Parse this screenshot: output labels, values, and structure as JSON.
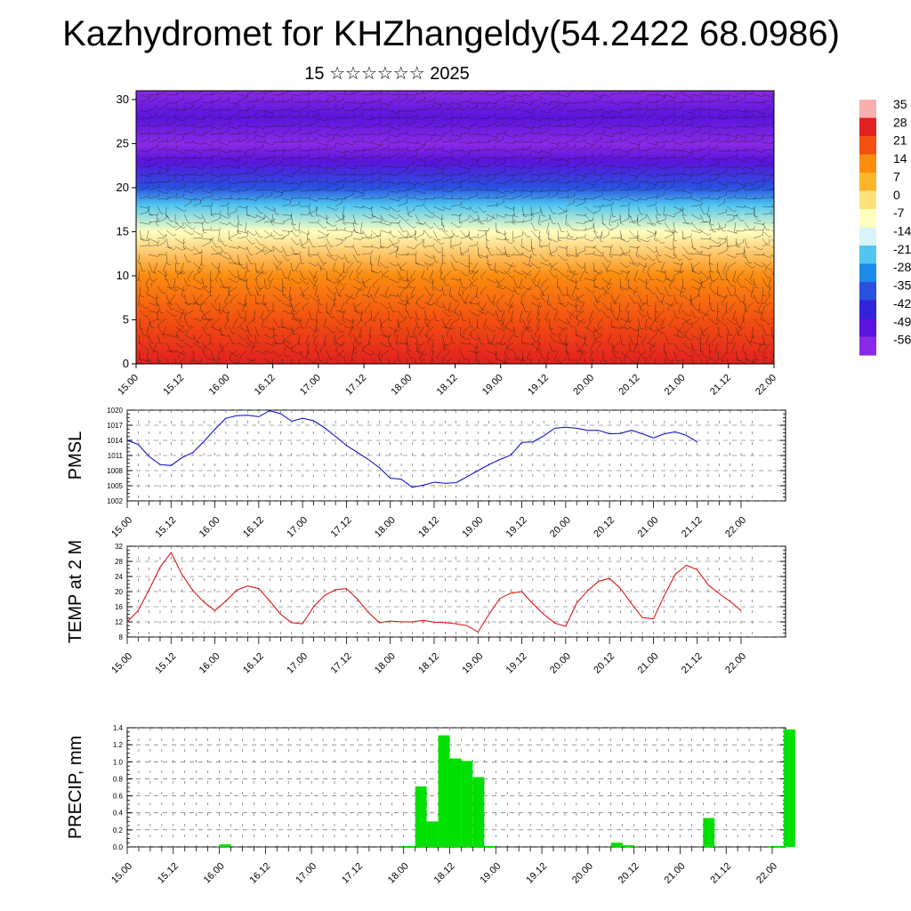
{
  "title": "Kazhydromet for KHZhangeldy(54.2422 68.0986)",
  "subtitle": "15 ☆☆☆☆☆☆ 2025",
  "x_tick_labels": [
    "15.00",
    "15.12",
    "16.00",
    "16.12",
    "17.00",
    "17.12",
    "18.00",
    "18.12",
    "19.00",
    "19.12",
    "20.00",
    "20.12",
    "21.00",
    "21.12",
    "22.00"
  ],
  "chart_data": [
    {
      "type": "heatmap",
      "panel": "vertical-cross-section",
      "description_note": "",
      "x_categories": [
        "15.00",
        "15.12",
        "16.00",
        "16.12",
        "17.00",
        "17.12",
        "18.00",
        "18.12",
        "19.00",
        "19.12",
        "20.00",
        "20.12",
        "21.00",
        "21.12",
        "22.00"
      ],
      "y_ticks": [
        0,
        5,
        10,
        15,
        20,
        25,
        30
      ],
      "ylim": [
        0,
        31
      ],
      "colorbar_labels": [
        "35",
        "28",
        "21",
        "14",
        "7",
        "0",
        "-7",
        "-14",
        "-21",
        "-28",
        "-35",
        "-42",
        "-49",
        "-56"
      ],
      "colorbar_colors": [
        "#f6b0b0",
        "#e22020",
        "#f25010",
        "#fb8c10",
        "#fdb52a",
        "#fde27a",
        "#ffffc0",
        "#d8f4f8",
        "#50c6f0",
        "#1c8ae8",
        "#2a50e0",
        "#3222d8",
        "#5a14dc",
        "#8a2ae6"
      ],
      "temperature_by_level": [
        {
          "level": 0,
          "value": 28
        },
        {
          "level": 5,
          "value": 24
        },
        {
          "level": 10,
          "value": 12
        },
        {
          "level": 15,
          "value": -7
        },
        {
          "level": 18,
          "value": -21
        },
        {
          "level": 20,
          "value": -35
        },
        {
          "level": 23,
          "value": -49
        },
        {
          "level": 25,
          "value": -56
        },
        {
          "level": 28,
          "value": -49
        },
        {
          "level": 31,
          "value": -56
        }
      ]
    },
    {
      "type": "line",
      "panel": "pmsl",
      "ylabel": "PMSL",
      "ylim": [
        1002,
        1020
      ],
      "y_ticks": [
        1002,
        1005,
        1008,
        1011,
        1014,
        1017,
        1020
      ],
      "color": "#0000cc",
      "x_start_day": 15,
      "step_hours": 3,
      "values": [
        1014.0,
        1013.2,
        1010.8,
        1009.2,
        1009.0,
        1010.6,
        1011.6,
        1013.8,
        1016.2,
        1018.4,
        1018.9,
        1019.0,
        1018.7,
        1019.9,
        1019.3,
        1017.8,
        1018.4,
        1017.9,
        1016.5,
        1014.8,
        1013.0,
        1011.6,
        1010.2,
        1008.6,
        1006.5,
        1006.3,
        1004.7,
        1005.1,
        1005.7,
        1005.5,
        1005.6,
        1006.8,
        1008.0,
        1009.2,
        1010.2,
        1011.1,
        1013.6,
        1013.7,
        1014.9,
        1016.4,
        1016.6,
        1016.4,
        1016.0,
        1016.0,
        1015.3,
        1015.4,
        1016.0,
        1015.3,
        1014.5,
        1015.3,
        1015.7,
        1015.0,
        1013.7
      ]
    },
    {
      "type": "line",
      "panel": "temp2m",
      "ylabel": "TEMP at 2 M",
      "ylim": [
        8,
        32
      ],
      "y_ticks": [
        8,
        12,
        16,
        20,
        24,
        28,
        32
      ],
      "color": "#dd0000",
      "x_start_day": 15,
      "step_hours": 3,
      "values": [
        12.0,
        15.0,
        20.5,
        26.5,
        30.3,
        24.5,
        20.2,
        17.2,
        15.0,
        17.5,
        20.4,
        21.5,
        20.8,
        17.5,
        14.0,
        11.8,
        11.5,
        16.0,
        19.0,
        20.5,
        20.8,
        18.0,
        14.5,
        11.8,
        12.2,
        12.0,
        12.0,
        12.4,
        11.9,
        11.8,
        11.5,
        11.0,
        9.3,
        14.0,
        18.2,
        19.6,
        20.0,
        16.8,
        14.0,
        11.7,
        10.8,
        17.0,
        20.2,
        22.7,
        23.5,
        20.8,
        16.8,
        13.1,
        12.8,
        19.0,
        24.6,
        27.0,
        25.8,
        21.8,
        19.5,
        17.4,
        15.0
      ]
    },
    {
      "type": "bar",
      "panel": "precip",
      "ylabel": "PRECIP, mm",
      "ylim": [
        0,
        1.4
      ],
      "y_ticks": [
        0.0,
        0.2,
        0.4,
        0.6,
        0.8,
        1.0,
        1.2,
        1.4
      ],
      "color": "#00e000",
      "x_start_day": 15,
      "step_hours": 3,
      "values": [
        0,
        0,
        0,
        0,
        0,
        0,
        0,
        0,
        0.03,
        0,
        0,
        0,
        0,
        0,
        0,
        0,
        0,
        0,
        0,
        0,
        0,
        0,
        0,
        0,
        0.01,
        0.71,
        0.3,
        1.31,
        1.04,
        1.01,
        0.82,
        0.01,
        0,
        0,
        0,
        0,
        0,
        0,
        0,
        0,
        0,
        0,
        0.05,
        0.02,
        0,
        0,
        0,
        0,
        0,
        0,
        0.34,
        0,
        0,
        0,
        0,
        0,
        0.01,
        1.38
      ]
    }
  ]
}
